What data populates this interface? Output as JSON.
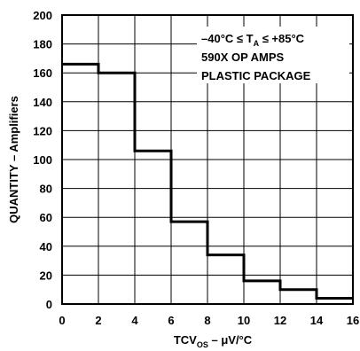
{
  "chart_data": {
    "type": "step",
    "title": "",
    "xlabel": "TCV",
    "xlabel_sub": "OS",
    "xlabel_unit": " – μV/°C",
    "ylabel": "QUANTITY – Amplifiers",
    "xlim": [
      0,
      16
    ],
    "ylim": [
      0,
      200
    ],
    "x_ticks": [
      0,
      2,
      4,
      6,
      8,
      10,
      12,
      14,
      16
    ],
    "y_ticks": [
      0,
      20,
      40,
      60,
      80,
      100,
      120,
      140,
      160,
      180,
      200
    ],
    "grid": true,
    "bins": [
      {
        "x_start": 0,
        "x_end": 2,
        "value": 166
      },
      {
        "x_start": 2,
        "x_end": 4,
        "value": 160
      },
      {
        "x_start": 4,
        "x_end": 6,
        "value": 106
      },
      {
        "x_start": 6,
        "x_end": 8,
        "value": 57
      },
      {
        "x_start": 8,
        "x_end": 10,
        "value": 34
      },
      {
        "x_start": 10,
        "x_end": 12,
        "value": 16
      },
      {
        "x_start": 12,
        "x_end": 14,
        "value": 10
      },
      {
        "x_start": 14,
        "x_end": 16,
        "value": 4
      }
    ],
    "annotation": {
      "line1_prefix": "–40°C ≤ T",
      "line1_sub": "A",
      "line1_suffix": " ≤ +85°C",
      "line2": "590X OP AMPS",
      "line3": "PLASTIC PACKAGE"
    }
  }
}
